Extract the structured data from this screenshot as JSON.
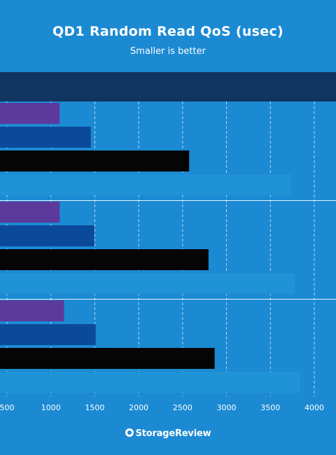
{
  "chart_data": {
    "type": "bar",
    "orientation": "horizontal",
    "title": "QD1 Random Read QoS (usec)",
    "subtitle": "Smaller is better",
    "xlim": [
      500,
      4000
    ],
    "x_ticks": [
      500,
      1000,
      1500,
      2000,
      2500,
      3000,
      3500,
      4000
    ],
    "grid": true,
    "groups": [
      {
        "values": [
          1100,
          1455,
          2575,
          3735
        ]
      },
      {
        "values": [
          1100,
          1495,
          2795,
          3775
        ]
      },
      {
        "values": [
          1150,
          1510,
          2865,
          3840
        ]
      }
    ],
    "series_colors": [
      "#5b3a9c",
      "#0b4a9a",
      "#050505",
      "#1f93d6"
    ]
  },
  "colors": {
    "background": "#1b8ad3",
    "header_band": "#0f3560",
    "grid": "#bcd7ec",
    "separator": "#e6f1fa"
  },
  "logo": {
    "text": "StorageReview",
    "icon": "storagereview-logo-icon"
  }
}
